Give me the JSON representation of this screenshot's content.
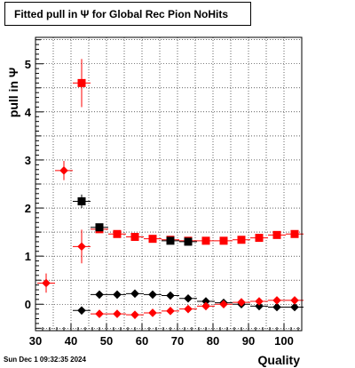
{
  "title": "Fitted pull in  Ψ  for Global Rec Pion NoHits",
  "footer": "Sun Dec  1 09:32:35 2024",
  "chart_data": {
    "type": "scatter",
    "title": "Fitted pull in  Ψ  for Global Rec Pion NoHits",
    "xlabel": "Quality",
    "ylabel": "pull in  Ψ",
    "xlim": [
      30,
      105
    ],
    "ylim": [
      -0.55,
      5.55
    ],
    "xticks": [
      30,
      40,
      50,
      60,
      70,
      80,
      90,
      100
    ],
    "yticks": [
      0,
      1,
      2,
      3,
      4,
      5
    ],
    "grid": true,
    "series": [
      {
        "color": "#ff0000",
        "marker": "square",
        "x": [
          43,
          48,
          53,
          58,
          63,
          68,
          73,
          78,
          83,
          88,
          93,
          98,
          103
        ],
        "y": [
          4.6,
          1.56,
          1.46,
          1.4,
          1.36,
          1.34,
          1.32,
          1.32,
          1.32,
          1.34,
          1.38,
          1.44,
          1.46
        ],
        "yerr": [
          0.5,
          0.07,
          0.04,
          0.04,
          0.04,
          0.04,
          0.04,
          0.04,
          0.04,
          0.04,
          0.04,
          0.04,
          0.04
        ]
      },
      {
        "color": "#000000",
        "marker": "square",
        "x": [
          43,
          48,
          68,
          73
        ],
        "y": [
          2.14,
          1.6,
          1.32,
          1.3
        ],
        "yerr": [
          0.14,
          0.05,
          0.04,
          0.04
        ]
      },
      {
        "color": "#000000",
        "marker": "diamond",
        "x": [
          43,
          48,
          53,
          58,
          63,
          68,
          73,
          78,
          83,
          88,
          93,
          98,
          103
        ],
        "y": [
          -0.13,
          0.2,
          0.2,
          0.22,
          0.2,
          0.18,
          0.12,
          0.06,
          0.03,
          0.0,
          -0.04,
          -0.06,
          -0.06
        ],
        "yerr": [
          0.04,
          0.03,
          0.03,
          0.03,
          0.03,
          0.03,
          0.03,
          0.03,
          0.03,
          0.03,
          0.03,
          0.03,
          0.03
        ]
      },
      {
        "color": "#ff0000",
        "marker": "diamond",
        "x": [
          33,
          38,
          43,
          48,
          53,
          58,
          63,
          68,
          73,
          78,
          83,
          88,
          93,
          98,
          103
        ],
        "y": [
          0.44,
          2.78,
          1.2,
          -0.2,
          -0.2,
          -0.22,
          -0.18,
          -0.14,
          -0.1,
          -0.04,
          0.0,
          0.04,
          0.06,
          0.08,
          0.08
        ],
        "yerr": [
          0.2,
          0.2,
          0.35,
          0.04,
          0.03,
          0.03,
          0.03,
          0.03,
          0.03,
          0.03,
          0.03,
          0.03,
          0.03,
          0.03,
          0.03
        ]
      }
    ]
  }
}
